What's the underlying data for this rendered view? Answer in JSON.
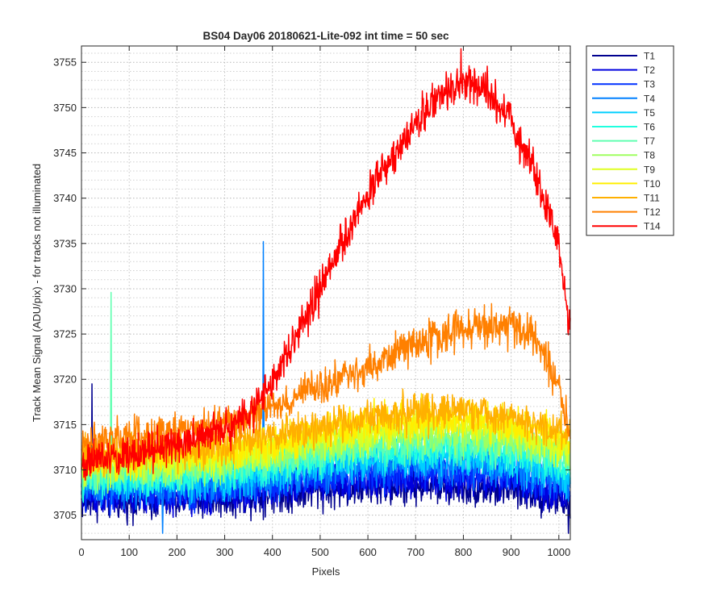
{
  "chart_data": {
    "type": "line",
    "title": "BS04 Day06 20180621-Lite-092 int time = 50 sec",
    "xlabel": "Pixels",
    "ylabel": "Track Mean Signal (ADU/pix) - for tracks not illuminated",
    "xlim": [
      0,
      1024
    ],
    "ylim": [
      3702.3,
      3756.8
    ],
    "xticks": [
      0,
      100,
      200,
      300,
      400,
      500,
      600,
      700,
      800,
      900,
      1000
    ],
    "yticks": [
      3705,
      3710,
      3715,
      3720,
      3725,
      3730,
      3735,
      3740,
      3745,
      3750,
      3755
    ],
    "ygrid_step": 1,
    "grid": true,
    "legend_position": "outside-top-right",
    "series": [
      {
        "name": "T1",
        "color": "#00008f",
        "x": [
          0,
          100,
          200,
          300,
          400,
          500,
          600,
          700,
          800,
          900,
          1000,
          1024
        ],
        "values": [
          3706.5,
          3706.6,
          3706.5,
          3706.8,
          3707.3,
          3707.8,
          3708.0,
          3708.2,
          3708.1,
          3707.8,
          3706.8,
          3706.2
        ],
        "noise": 1.5,
        "spikes": [
          {
            "x": 22,
            "value": 3719.5
          },
          {
            "x": 1020,
            "value": 3703.0
          }
        ]
      },
      {
        "name": "T2",
        "color": "#0000df",
        "x": [
          0,
          100,
          200,
          300,
          400,
          500,
          600,
          700,
          800,
          900,
          1000,
          1024
        ],
        "values": [
          3707.0,
          3707.1,
          3707.0,
          3707.3,
          3707.9,
          3708.5,
          3708.8,
          3709.1,
          3709.0,
          3708.7,
          3707.6,
          3707.0
        ],
        "noise": 1.5,
        "spikes": []
      },
      {
        "name": "T3",
        "color": "#0030ff",
        "x": [
          0,
          100,
          200,
          300,
          400,
          500,
          600,
          700,
          800,
          900,
          1000,
          1024
        ],
        "values": [
          3707.5,
          3707.7,
          3707.6,
          3707.9,
          3708.5,
          3709.2,
          3709.6,
          3709.9,
          3709.9,
          3709.5,
          3708.3,
          3707.7
        ],
        "noise": 1.5,
        "spikes": []
      },
      {
        "name": "T4",
        "color": "#0080ff",
        "x": [
          0,
          100,
          200,
          300,
          400,
          500,
          600,
          700,
          800,
          900,
          1000,
          1024
        ],
        "values": [
          3708.0,
          3708.2,
          3708.1,
          3708.5,
          3709.2,
          3709.9,
          3710.3,
          3710.7,
          3710.7,
          3710.3,
          3709.0,
          3708.4
        ],
        "noise": 1.5,
        "spikes": [
          {
            "x": 381,
            "value": 3735.2
          },
          {
            "x": 170,
            "value": 3703.0
          }
        ]
      },
      {
        "name": "T5",
        "color": "#00cfff",
        "x": [
          0,
          100,
          200,
          300,
          400,
          500,
          600,
          700,
          800,
          900,
          1000,
          1024
        ],
        "values": [
          3708.5,
          3708.7,
          3708.7,
          3709.1,
          3709.8,
          3710.6,
          3711.1,
          3711.5,
          3711.5,
          3711.1,
          3709.8,
          3709.1
        ],
        "noise": 1.5,
        "spikes": []
      },
      {
        "name": "T6",
        "color": "#20ffdf",
        "x": [
          0,
          100,
          200,
          300,
          400,
          500,
          600,
          700,
          800,
          900,
          1000,
          1024
        ],
        "values": [
          3709.0,
          3709.3,
          3709.3,
          3709.7,
          3710.5,
          3711.3,
          3711.9,
          3712.3,
          3712.4,
          3711.9,
          3710.6,
          3709.9
        ],
        "noise": 1.5,
        "spikes": []
      },
      {
        "name": "T7",
        "color": "#60ffb0",
        "x": [
          0,
          100,
          200,
          300,
          400,
          500,
          600,
          700,
          800,
          900,
          1000,
          1024
        ],
        "values": [
          3709.5,
          3709.8,
          3709.9,
          3710.3,
          3711.1,
          3712.0,
          3712.6,
          3713.1,
          3713.2,
          3712.7,
          3711.4,
          3710.7
        ],
        "noise": 1.5,
        "spikes": [
          {
            "x": 62,
            "value": 3729.6
          }
        ]
      },
      {
        "name": "T8",
        "color": "#9fff60",
        "x": [
          0,
          100,
          200,
          300,
          400,
          500,
          600,
          700,
          800,
          900,
          1000,
          1024
        ],
        "values": [
          3710.0,
          3710.3,
          3710.4,
          3710.9,
          3711.8,
          3712.7,
          3713.4,
          3713.9,
          3714.0,
          3713.5,
          3712.2,
          3711.5
        ],
        "noise": 1.5,
        "spikes": []
      },
      {
        "name": "T9",
        "color": "#dfff20",
        "x": [
          0,
          100,
          200,
          300,
          400,
          500,
          600,
          700,
          800,
          900,
          1000,
          1024
        ],
        "values": [
          3710.5,
          3710.9,
          3711.0,
          3711.5,
          3712.4,
          3713.4,
          3714.2,
          3714.7,
          3714.9,
          3714.3,
          3713.0,
          3712.2
        ],
        "noise": 1.5,
        "spikes": []
      },
      {
        "name": "T10",
        "color": "#ffef00",
        "x": [
          0,
          100,
          200,
          300,
          400,
          500,
          600,
          700,
          800,
          900,
          1000,
          1024
        ],
        "values": [
          3711.0,
          3711.4,
          3711.6,
          3712.1,
          3713.1,
          3714.1,
          3715.0,
          3715.5,
          3715.7,
          3715.1,
          3713.8,
          3713.0
        ],
        "noise": 1.5,
        "spikes": []
      },
      {
        "name": "T11",
        "color": "#ffb000",
        "x": [
          0,
          100,
          200,
          300,
          400,
          500,
          600,
          700,
          800,
          900,
          1000,
          1024
        ],
        "values": [
          3711.5,
          3711.9,
          3712.2,
          3712.7,
          3713.8,
          3714.8,
          3715.7,
          3716.3,
          3716.5,
          3715.9,
          3714.6,
          3713.8
        ],
        "noise": 1.5,
        "spikes": []
      },
      {
        "name": "T12",
        "color": "#ff8000",
        "x": [
          0,
          100,
          200,
          300,
          400,
          500,
          600,
          700,
          800,
          900,
          950,
          1000,
          1024
        ],
        "values": [
          3712.8,
          3713.5,
          3714.3,
          3715.0,
          3716.8,
          3719.3,
          3721.3,
          3723.8,
          3725.6,
          3726.0,
          3724.5,
          3719.0,
          3714.0
        ],
        "noise": 1.5,
        "spikes": []
      },
      {
        "name": "T14",
        "color": "#ff0000",
        "x": [
          0,
          50,
          100,
          150,
          200,
          250,
          300,
          350,
          400,
          450,
          500,
          550,
          600,
          650,
          700,
          750,
          800,
          850,
          900,
          950,
          1000,
          1024
        ],
        "values": [
          3710.8,
          3711.3,
          3711.8,
          3712.3,
          3712.8,
          3713.5,
          3714.5,
          3716.2,
          3719.5,
          3724.5,
          3730.0,
          3735.5,
          3740.5,
          3744.5,
          3748.5,
          3751.5,
          3752.8,
          3751.8,
          3748.5,
          3743.0,
          3734.5,
          3725.5
        ],
        "noise": 1.6,
        "spikes": [
          {
            "x": 795,
            "value": 3756.5
          }
        ]
      }
    ]
  }
}
